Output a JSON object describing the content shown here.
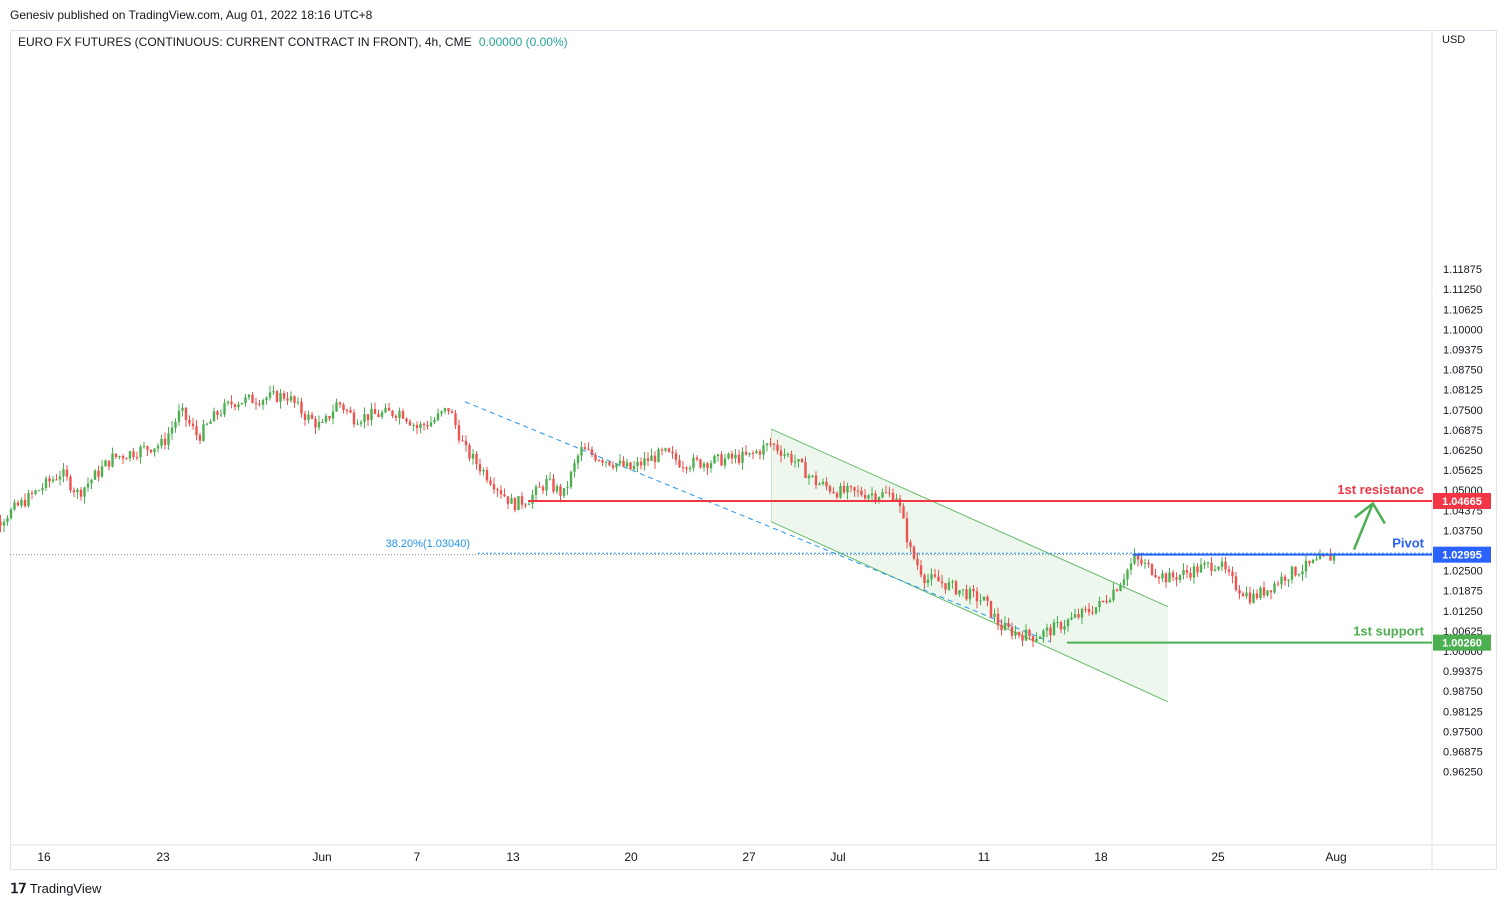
{
  "header": {
    "published_by": "Genesiv published on TradingView.com, Aug 01, 2022 18:16 UTC+8"
  },
  "legend": {
    "symbol": "EURO FX FUTURES (CONTINUOUS: CURRENT CONTRACT IN FRONT), 4h, CME",
    "change": "0.00000 (0.00%)"
  },
  "currency": "USD",
  "footer": {
    "brand": "TradingView"
  },
  "colors": {
    "up": "#4caf50",
    "down": "#ef5350",
    "resistance": "#f23645",
    "pivot": "#2962ff",
    "support": "#4caf50",
    "channel": "#66bb6a",
    "channel_fill": "#e8f5e9",
    "fib": "#2196f3"
  },
  "chart_data": {
    "type": "candlestick",
    "ylim": [
      0.9625,
      1.1187
    ],
    "y_ticks": [
      "1.11875",
      "1.11250",
      "1.10625",
      "1.10000",
      "1.09375",
      "1.08750",
      "1.08125",
      "1.07500",
      "1.06875",
      "1.06250",
      "1.05625",
      "1.05000",
      "1.04375",
      "1.03750",
      "1.03125",
      "1.02500",
      "1.01875",
      "1.01250",
      "1.00625",
      "1.00000",
      "0.99375",
      "0.98750",
      "0.98125",
      "0.97500",
      "0.96875",
      "0.96250"
    ],
    "x_ticks": [
      "16",
      "23",
      "Jun",
      "7",
      "13",
      "20",
      "27",
      "Jul",
      "11",
      "18",
      "25",
      "Aug"
    ],
    "price_path": [
      {
        "date": "May 12",
        "price": 1.037
      },
      {
        "date": "May 13",
        "price": 1.039
      },
      {
        "date": "May 17",
        "price": 1.0555
      },
      {
        "date": "May 18",
        "price": 1.049
      },
      {
        "date": "May 20",
        "price": 1.06
      },
      {
        "date": "May 23",
        "price": 1.0645
      },
      {
        "date": "May 24",
        "price": 1.0745
      },
      {
        "date": "May 25",
        "price": 1.0665
      },
      {
        "date": "May 26",
        "price": 1.0735
      },
      {
        "date": "May 27",
        "price": 1.0775
      },
      {
        "date": "May 30",
        "price": 1.0795
      },
      {
        "date": "May 31",
        "price": 1.0735
      },
      {
        "date": "Jun 1",
        "price": 1.0695
      },
      {
        "date": "Jun 2",
        "price": 1.0775
      },
      {
        "date": "Jun 3",
        "price": 1.0725
      },
      {
        "date": "Jun 6",
        "price": 1.0745
      },
      {
        "date": "Jun 7",
        "price": 1.0695
      },
      {
        "date": "Jun 8",
        "price": 1.0715
      },
      {
        "date": "Jun 9",
        "price": 1.0755
      },
      {
        "date": "Jun 10",
        "price": 1.0625
      },
      {
        "date": "Jun 13",
        "price": 1.0455
      },
      {
        "date": "Jun 14",
        "price": 1.0475
      },
      {
        "date": "Jun 15",
        "price": 1.0525
      },
      {
        "date": "Jun 16",
        "price": 1.0485
      },
      {
        "date": "Jun 17",
        "price": 1.0625
      },
      {
        "date": "Jun 20",
        "price": 1.0565
      },
      {
        "date": "Jun 21",
        "price": 1.0595
      },
      {
        "date": "Jun 22",
        "price": 1.0615
      },
      {
        "date": "Jun 23",
        "price": 1.0585
      },
      {
        "date": "Jun 24",
        "price": 1.0585
      },
      {
        "date": "Jun 27",
        "price": 1.0605
      },
      {
        "date": "Jun 28",
        "price": 1.0645
      },
      {
        "date": "Jun 29",
        "price": 1.0595
      },
      {
        "date": "Jun 30",
        "price": 1.0525
      },
      {
        "date": "Jul 1",
        "price": 1.0495
      },
      {
        "date": "Jul 5",
        "price": 1.0485
      },
      {
        "date": "Jul 6",
        "price": 1.0305
      },
      {
        "date": "Jul 7",
        "price": 1.0225
      },
      {
        "date": "Jul 8",
        "price": 1.0215
      },
      {
        "date": "Jul 11",
        "price": 1.0155
      },
      {
        "date": "Jul 12",
        "price": 1.0075
      },
      {
        "date": "Jul 13",
        "price": 1.0055
      },
      {
        "date": "Jul 14",
        "price": 1.0045
      },
      {
        "date": "Jul 15",
        "price": 1.0065
      },
      {
        "date": "Jul 18",
        "price": 1.0145
      },
      {
        "date": "Jul 19",
        "price": 1.0205
      },
      {
        "date": "Jul 20",
        "price": 1.0285
      },
      {
        "date": "Jul 21",
        "price": 1.0255
      },
      {
        "date": "Jul 22",
        "price": 1.0225
      },
      {
        "date": "Jul 25",
        "price": 1.0275
      },
      {
        "date": "Jul 26",
        "price": 1.0205
      },
      {
        "date": "Jul 27",
        "price": 1.0165
      },
      {
        "date": "Jul 28",
        "price": 1.0195
      },
      {
        "date": "Jul 29",
        "price": 1.0235
      },
      {
        "date": "Aug 1",
        "price": 1.0299
      }
    ],
    "levels": [
      {
        "name": "1st resistance",
        "value": 1.04665,
        "label": "1.04665"
      },
      {
        "name": "Pivot",
        "value": 1.02995,
        "label": "1.02995"
      },
      {
        "name": "1st support",
        "value": 1.0026,
        "label": "1.00260"
      }
    ],
    "fib": {
      "label": "38.20%(1.03040)",
      "value": 1.0304
    },
    "descending_channel": {
      "upper": [
        {
          "date": "Jun 28",
          "price": 1.069
        },
        {
          "date": "Jul 22",
          "price": 1.0138
        }
      ],
      "lower": [
        {
          "date": "Jun 28",
          "price": 1.0402
        },
        {
          "date": "Jul 22",
          "price": 0.9842
        }
      ]
    },
    "fib_trendline": [
      {
        "date": "Jun 10",
        "price": 1.0775
      },
      {
        "date": "Jul 15",
        "price": 1.0028
      }
    ],
    "projection_arrow": [
      {
        "date": "Aug 1",
        "price": 1.0303
      },
      {
        "date": "Aug 2",
        "price": 1.0465
      }
    ]
  }
}
